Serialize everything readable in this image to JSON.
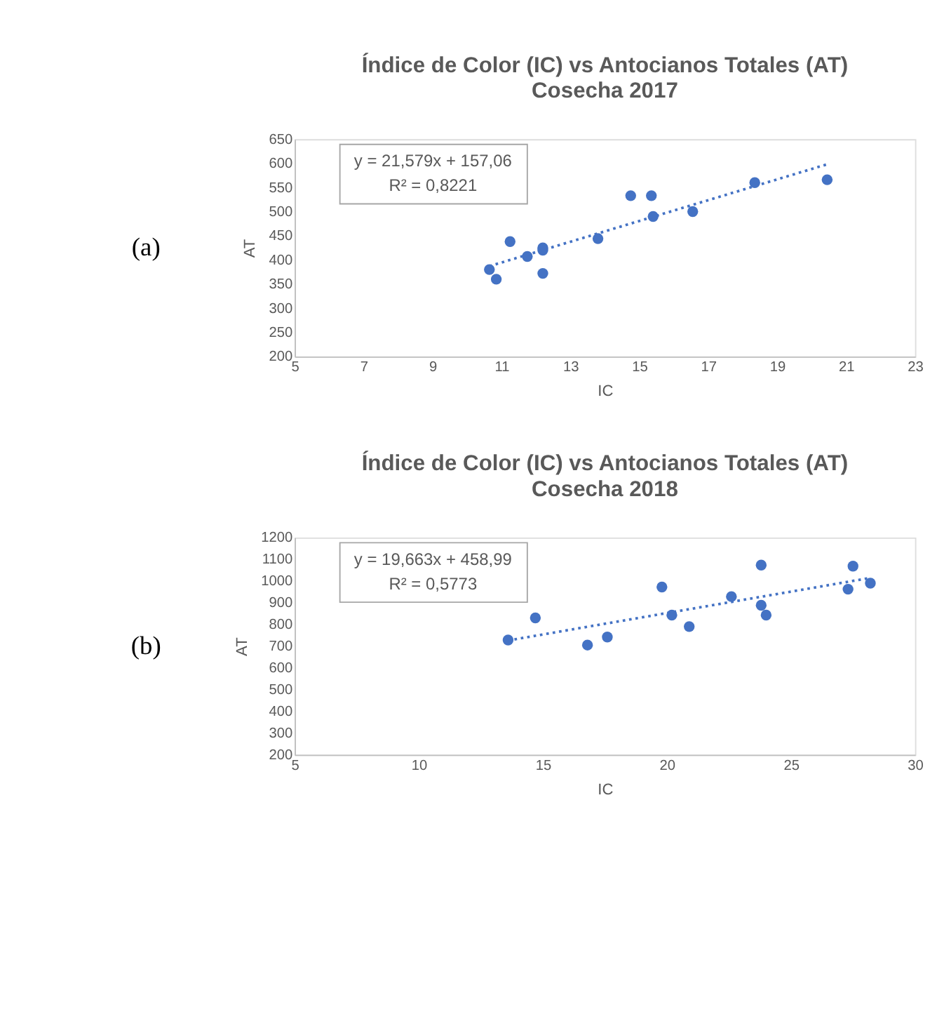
{
  "chart_data": [
    {
      "type": "scatter",
      "title": "Índice de Color (IC) vs Antocianos Totales (AT)",
      "subtitle": "Cosecha 2017",
      "xlabel": "IC",
      "ylabel": "AT",
      "xlim": [
        5,
        23
      ],
      "xticks": [
        5,
        7,
        9,
        11,
        13,
        15,
        17,
        19,
        21,
        23
      ],
      "ylim": [
        200,
        650
      ],
      "yticks": [
        200,
        250,
        300,
        350,
        400,
        450,
        500,
        550,
        600,
        650
      ],
      "grid": false,
      "annotations": [
        "y = 21,579x + 157,06",
        "R² = 0,8221",
        "(a)"
      ],
      "series": [
        {
          "marker": "circle",
          "color": "#4472c4",
          "x": [
            10.65,
            10.85,
            11.25,
            11.75,
            12.2,
            12.2,
            12.2,
            13.8,
            14.75,
            15.35,
            15.4,
            16.55,
            18.35,
            20.45
          ],
          "values": [
            380,
            360,
            438,
            407,
            425,
            420,
            372,
            444,
            533,
            533,
            490,
            500,
            560,
            566
          ]
        },
        {
          "type": "line",
          "marker": "none",
          "line_style": "dotted",
          "color": "#4472c4",
          "x": [
            10.65,
            20.45
          ],
          "values": [
            387,
            598
          ]
        }
      ]
    },
    {
      "type": "scatter",
      "title": "Índice de Color (IC) vs Antocianos Totales (AT)",
      "subtitle": "Cosecha 2018",
      "xlabel": "IC",
      "ylabel": "AT",
      "xlim": [
        5,
        30
      ],
      "xticks": [
        5,
        10,
        15,
        20,
        25,
        30
      ],
      "ylim": [
        200,
        1200
      ],
      "yticks": [
        200,
        300,
        400,
        500,
        600,
        700,
        800,
        900,
        1000,
        1100,
        1200
      ],
      "grid": false,
      "annotations": [
        "y = 19,663x + 458,99",
        "R² = 0,5773",
        "(b)"
      ],
      "series": [
        {
          "marker": "circle",
          "color": "#4472c4",
          "x": [
            13.6,
            14.7,
            16.8,
            17.6,
            19.8,
            20.2,
            20.9,
            22.6,
            23.8,
            23.8,
            24.0,
            27.3,
            27.5,
            28.2
          ],
          "values": [
            728,
            830,
            705,
            742,
            972,
            843,
            790,
            928,
            1073,
            888,
            843,
            962,
            1068,
            990
          ]
        },
        {
          "type": "line",
          "marker": "none",
          "line_style": "dotted",
          "color": "#4472c4",
          "x": [
            13.6,
            28.2
          ],
          "values": [
            726,
            1014
          ]
        }
      ]
    }
  ]
}
